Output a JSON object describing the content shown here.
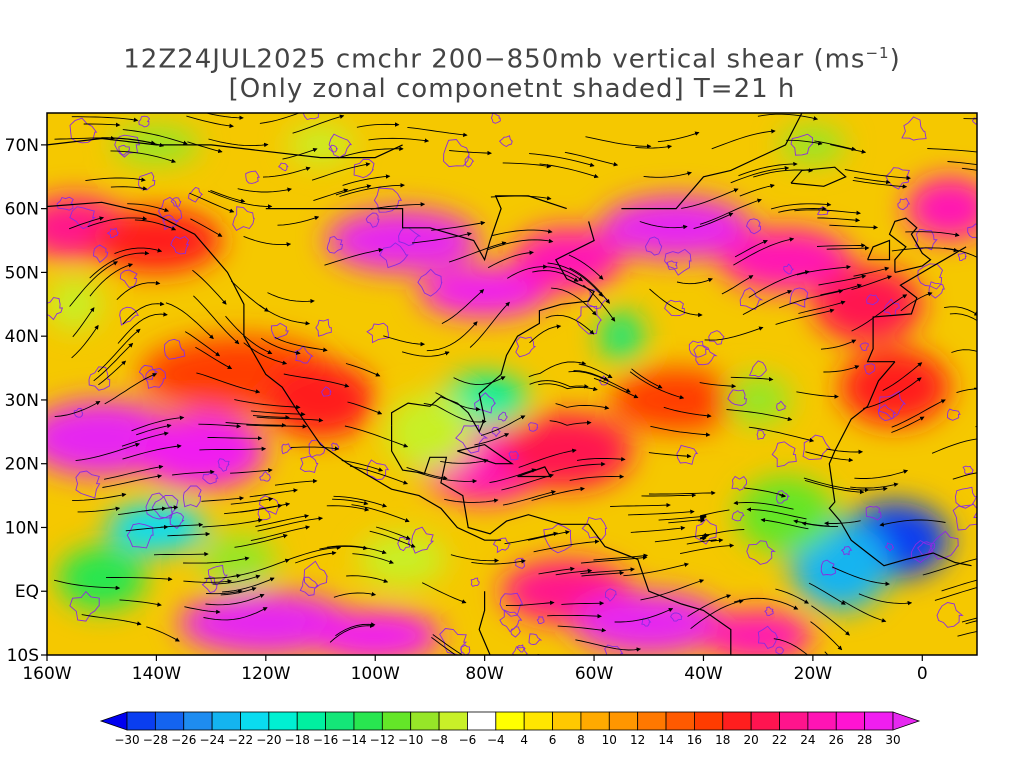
{
  "title": {
    "line1": "12Z24JUL2025 cmchr 200−850mb vertical shear (ms",
    "line1_sup": "−1",
    "line1_end": ")",
    "line2": "[Only zonal componetnt shaded] T=21 h"
  },
  "map": {
    "lon_range": [
      -160,
      10
    ],
    "lat_range": [
      -10,
      75
    ],
    "lon_ticks": [
      {
        "value": -160,
        "label": "160W"
      },
      {
        "value": -140,
        "label": "140W"
      },
      {
        "value": -120,
        "label": "120W"
      },
      {
        "value": -100,
        "label": "100W"
      },
      {
        "value": -80,
        "label": "80W"
      },
      {
        "value": -60,
        "label": "60W"
      },
      {
        "value": -40,
        "label": "40W"
      },
      {
        "value": -20,
        "label": "20W"
      },
      {
        "value": 0,
        "label": "0"
      }
    ],
    "lat_ticks": [
      {
        "value": 70,
        "label": "70N"
      },
      {
        "value": 60,
        "label": "60N"
      },
      {
        "value": 50,
        "label": "50N"
      },
      {
        "value": 40,
        "label": "40N"
      },
      {
        "value": 30,
        "label": "30N"
      },
      {
        "value": 20,
        "label": "20N"
      },
      {
        "value": 10,
        "label": "10N"
      },
      {
        "value": 0,
        "label": "EQ"
      },
      {
        "value": -10,
        "label": "10S"
      }
    ],
    "blobs": [
      {
        "lon": -150,
        "lat": 24,
        "v": 30,
        "rx": 14,
        "ry": 6
      },
      {
        "lon": -132,
        "lat": 22,
        "v": 28,
        "rx": 12,
        "ry": 6
      },
      {
        "lon": -125,
        "lat": 34,
        "v": 16,
        "rx": 18,
        "ry": 6
      },
      {
        "lon": -110,
        "lat": 30,
        "v": 18,
        "rx": 10,
        "ry": 6
      },
      {
        "lon": -155,
        "lat": 57,
        "v": 22,
        "rx": 10,
        "ry": 5
      },
      {
        "lon": -140,
        "lat": 55,
        "v": 18,
        "rx": 12,
        "ry": 5
      },
      {
        "lon": -95,
        "lat": 55,
        "v": 30,
        "rx": 14,
        "ry": 5
      },
      {
        "lon": -80,
        "lat": 47,
        "v": 28,
        "rx": 12,
        "ry": 4
      },
      {
        "lon": -65,
        "lat": 52,
        "v": 24,
        "rx": 10,
        "ry": 5
      },
      {
        "lon": -45,
        "lat": 57,
        "v": 30,
        "rx": 14,
        "ry": 5
      },
      {
        "lon": -25,
        "lat": 52,
        "v": 24,
        "rx": 12,
        "ry": 5
      },
      {
        "lon": -10,
        "lat": 45,
        "v": 20,
        "rx": 10,
        "ry": 6
      },
      {
        "lon": 5,
        "lat": 60,
        "v": 24,
        "rx": 8,
        "ry": 5
      },
      {
        "lon": -80,
        "lat": 20,
        "v": 24,
        "rx": 12,
        "ry": 6
      },
      {
        "lon": -65,
        "lat": 22,
        "v": 20,
        "rx": 12,
        "ry": 6
      },
      {
        "lon": -45,
        "lat": 30,
        "v": 16,
        "rx": 12,
        "ry": 5
      },
      {
        "lon": -5,
        "lat": 32,
        "v": 18,
        "rx": 10,
        "ry": 6
      },
      {
        "lon": -120,
        "lat": -5,
        "v": 30,
        "rx": 16,
        "ry": 5
      },
      {
        "lon": -100,
        "lat": -7,
        "v": 28,
        "rx": 12,
        "ry": 4
      },
      {
        "lon": -65,
        "lat": 0,
        "v": 22,
        "rx": 12,
        "ry": 5
      },
      {
        "lon": -50,
        "lat": -5,
        "v": 30,
        "rx": 14,
        "ry": 5
      },
      {
        "lon": -30,
        "lat": -7,
        "v": 24,
        "rx": 10,
        "ry": 4
      },
      {
        "lon": -140,
        "lat": 10,
        "v": -22,
        "rx": 9,
        "ry": 4
      },
      {
        "lon": -150,
        "lat": 2,
        "v": -14,
        "rx": 8,
        "ry": 5
      },
      {
        "lon": -125,
        "lat": 5,
        "v": -10,
        "rx": 7,
        "ry": 4
      },
      {
        "lon": -80,
        "lat": 30,
        "v": -18,
        "rx": 8,
        "ry": 4
      },
      {
        "lon": -90,
        "lat": 25,
        "v": -8,
        "rx": 8,
        "ry": 6
      },
      {
        "lon": -55,
        "lat": 40,
        "v": -16,
        "rx": 4,
        "ry": 4
      },
      {
        "lon": -5,
        "lat": 8,
        "v": -30,
        "rx": 10,
        "ry": 6
      },
      {
        "lon": -15,
        "lat": 4,
        "v": -24,
        "rx": 9,
        "ry": 7
      },
      {
        "lon": -25,
        "lat": 12,
        "v": -12,
        "rx": 9,
        "ry": 6
      },
      {
        "lon": -140,
        "lat": 70,
        "v": -10,
        "rx": 8,
        "ry": 3
      },
      {
        "lon": -110,
        "lat": 70,
        "v": -8,
        "rx": 6,
        "ry": 3
      },
      {
        "lon": -20,
        "lat": 70,
        "v": -10,
        "rx": 6,
        "ry": 3
      },
      {
        "lon": -155,
        "lat": 45,
        "v": -8,
        "rx": 5,
        "ry": 4
      },
      {
        "lon": -95,
        "lat": 5,
        "v": -8,
        "rx": 8,
        "ry": 4
      },
      {
        "lon": -30,
        "lat": 30,
        "v": -10,
        "rx": 6,
        "ry": 4
      }
    ]
  },
  "colorbar": {
    "levels": [
      -30,
      -28,
      -26,
      -24,
      -22,
      -20,
      -18,
      -16,
      -14,
      -12,
      -10,
      -8,
      -6,
      -4,
      4,
      6,
      8,
      10,
      12,
      14,
      16,
      18,
      20,
      22,
      24,
      26,
      28,
      30
    ],
    "labels": [
      "−30",
      "−28",
      "−26",
      "−24",
      "−22",
      "−20",
      "−18",
      "−16",
      "−14",
      "−12",
      "−10",
      "−8",
      "−6",
      "−4",
      "4",
      "6",
      "8",
      "10",
      "12",
      "14",
      "16",
      "18",
      "20",
      "22",
      "24",
      "26",
      "28",
      "30"
    ],
    "colors": [
      "#0000f0",
      "#0a3ef0",
      "#1464f0",
      "#1e8cf0",
      "#14b4f0",
      "#0adcf0",
      "#00f0d2",
      "#00f0a0",
      "#14e678",
      "#28e650",
      "#64e628",
      "#96e628",
      "#c8f028",
      "#ffffff",
      "#ffff00",
      "#ffe600",
      "#ffc800",
      "#ffaa00",
      "#ff9600",
      "#ff7800",
      "#ff5a00",
      "#ff3c00",
      "#ff1e1e",
      "#ff1450",
      "#ff148c",
      "#ff14b4",
      "#ff14d2",
      "#f01ef0",
      "#e628f0"
    ]
  }
}
